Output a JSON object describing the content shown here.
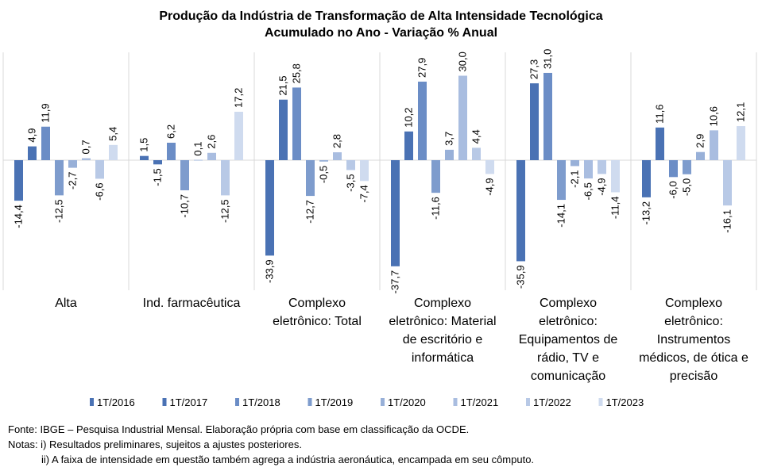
{
  "title_line1": "Produção da Indústria de Transformação de Alta Intensidade Tecnológica",
  "title_line2": "Acumulado no Ano - Variação % Anual",
  "chart_data": {
    "type": "bar",
    "title": "Produção da Indústria de Transformação de Alta Intensidade Tecnológica — Acumulado no Ano - Variação % Anual",
    "categories": [
      [
        "Alta"
      ],
      [
        "Ind. farmacêutica"
      ],
      [
        "Complexo",
        "eletrônico: Total"
      ],
      [
        "Complexo",
        "eletrônico: Material",
        "de escritório e",
        "informática"
      ],
      [
        "Complexo",
        "eletrônico:",
        "Equipamentos de",
        "rádio, TV e",
        "comunicação"
      ],
      [
        "Complexo",
        "eletrônico:",
        "Instrumentos",
        "médicos, de ótica e",
        "precisão"
      ]
    ],
    "series": [
      {
        "name": "1T/2016",
        "color": "#4a72b4",
        "values": [
          -14.4,
          1.5,
          -33.9,
          -37.7,
          -35.9,
          -13.2
        ]
      },
      {
        "name": "1T/2017",
        "color": "#4a72b4",
        "values": [
          4.9,
          -1.5,
          21.5,
          10.2,
          27.3,
          11.6
        ]
      },
      {
        "name": "1T/2018",
        "color": "#6b8dc6",
        "values": [
          11.9,
          6.2,
          25.8,
          27.9,
          31.0,
          -6.0
        ]
      },
      {
        "name": "1T/2019",
        "color": "#7e9ccd",
        "values": [
          -12.5,
          -10.7,
          -12.7,
          -11.6,
          -14.1,
          -5.0
        ]
      },
      {
        "name": "1T/2020",
        "color": "#98b0d8",
        "values": [
          -2.7,
          0.1,
          -0.5,
          3.7,
          -2.1,
          2.9
        ]
      },
      {
        "name": "1T/2021",
        "color": "#a9bde0",
        "values": [
          0.7,
          2.6,
          2.8,
          30.0,
          -6.5,
          10.6
        ]
      },
      {
        "name": "1T/2022",
        "color": "#b8c9e6",
        "values": [
          -6.6,
          -12.5,
          -3.5,
          4.4,
          -4.9,
          -16.1
        ]
      },
      {
        "name": "1T/2023",
        "color": "#cfdbef",
        "values": [
          5.4,
          17.2,
          -7.4,
          -4.9,
          -11.4,
          12.1
        ]
      }
    ],
    "ylim": [
      -45,
      35
    ],
    "grid": false,
    "legend_position": "bottom"
  },
  "notes": {
    "source": "Fonte: IBGE – Pesquisa Industrial Mensal. Elaboração própria com base em classificação da OCDE.",
    "note1": "Notas: i) Resultados preliminares, sujeitos a ajustes posteriores.",
    "note2": "ii) A faixa de intensidade em questão também agrega a indústria aeronáutica, encampada em seu cômputo."
  }
}
